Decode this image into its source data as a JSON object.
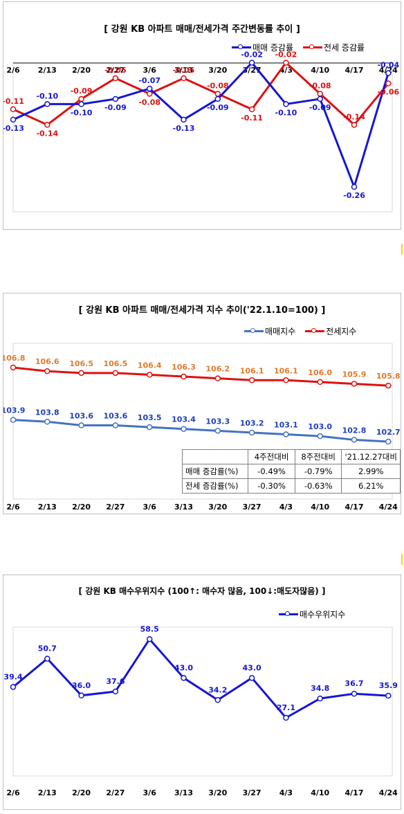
{
  "colors": {
    "blue": "#1515d6",
    "red": "#e01010",
    "orange_label": "#e07b2e",
    "blue_label": "#1f3fbf",
    "red_label": "#e01010"
  },
  "panel1": {
    "title": "[ 강원  KB 아파트 매매/전세가격 주간변동률 추이 ]",
    "legend": [
      "매매 증감률",
      "전세 증감률"
    ],
    "chart_data": {
      "type": "line",
      "categories": [
        "2/6",
        "2/13",
        "2/20",
        "2/27",
        "3/6",
        "3/13",
        "3/20",
        "3/27",
        "4/3",
        "4/10",
        "4/17",
        "4/24"
      ],
      "series": [
        {
          "name": "매매 증감률",
          "color": "#1515d6",
          "values": [
            -0.13,
            -0.1,
            -0.1,
            -0.09,
            -0.07,
            -0.13,
            -0.09,
            -0.02,
            -0.1,
            -0.09,
            -0.26,
            -0.04
          ]
        },
        {
          "name": "전세 증감률",
          "color": "#e01010",
          "values": [
            -0.11,
            -0.14,
            -0.09,
            -0.05,
            -0.08,
            -0.05,
            -0.08,
            -0.11,
            -0.02,
            -0.08,
            -0.14,
            -0.06
          ]
        }
      ],
      "ylim": [
        -0.31,
        -0.02
      ],
      "x_axis_position": "top"
    }
  },
  "panel2": {
    "title": "[  강원  KB 아파트 매매/전세가격 지수 추이('22.1.10=100)  ]",
    "legend": [
      "매매지수",
      "전세지수"
    ],
    "chart_data": {
      "type": "line",
      "categories": [
        "2/6",
        "2/13",
        "2/20",
        "2/27",
        "3/6",
        "3/13",
        "3/20",
        "3/27",
        "4/3",
        "4/10",
        "4/17",
        "4/24"
      ],
      "series": [
        {
          "name": "매매지수",
          "color": "#4472c4",
          "values": [
            103.9,
            103.8,
            103.6,
            103.6,
            103.5,
            103.4,
            103.3,
            103.2,
            103.1,
            103.0,
            102.8,
            102.7
          ]
        },
        {
          "name": "전세지수",
          "color": "#e01010",
          "values": [
            106.8,
            106.6,
            106.5,
            106.5,
            106.4,
            106.3,
            106.2,
            106.1,
            106.1,
            106.0,
            105.9,
            105.8
          ]
        }
      ]
    },
    "table": {
      "headers": [
        "",
        "4주전대비",
        "8주전대비",
        "'21.12.27대비"
      ],
      "rows": [
        [
          "매매 증감률(%)",
          "-0.49%",
          "-0.79%",
          "2.99%"
        ],
        [
          "전세 증감률(%)",
          "-0.30%",
          "-0.63%",
          "6.21%"
        ]
      ]
    }
  },
  "panel3": {
    "title": "[ 강원 KB 매수우위지수 (100↑: 매수자 많음, 100↓:매도자많음) ]",
    "legend": [
      "매수우위지수"
    ],
    "chart_data": {
      "type": "line",
      "categories": [
        "2/6",
        "2/13",
        "2/20",
        "2/27",
        "3/6",
        "3/13",
        "3/20",
        "3/27",
        "4/3",
        "4/10",
        "4/17",
        "4/24"
      ],
      "series": [
        {
          "name": "매수우위지수",
          "color": "#1515d6",
          "values": [
            39.4,
            50.7,
            36.0,
            37.6,
            58.5,
            43.0,
            34.2,
            43.0,
            27.1,
            34.8,
            36.7,
            35.9
          ]
        }
      ]
    }
  }
}
